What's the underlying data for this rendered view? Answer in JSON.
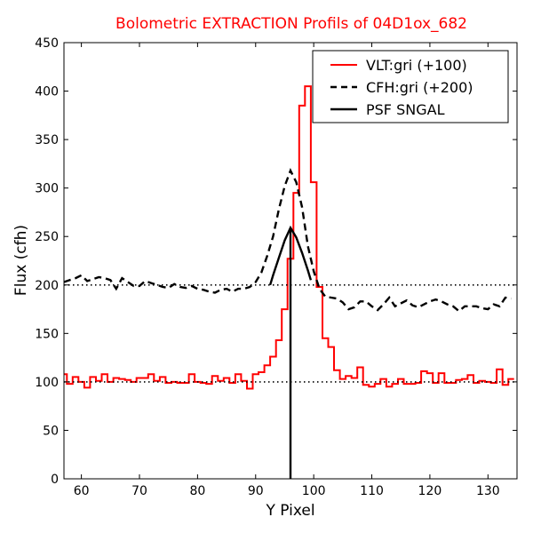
{
  "chart_data": {
    "type": "line",
    "title": "Bolometric EXTRACTION Profils of 04D1ox_682",
    "title_color": "#ff0000",
    "xlabel": "Y Pixel",
    "ylabel": "Flux (cfh)",
    "xlim": [
      57,
      135
    ],
    "ylim": [
      0,
      450
    ],
    "xticks": [
      60,
      70,
      80,
      90,
      100,
      110,
      120,
      130
    ],
    "yticks": [
      0,
      50,
      100,
      150,
      200,
      250,
      300,
      350,
      400,
      450
    ],
    "grid": false,
    "legend": "top-right",
    "reference_lines": [
      100,
      200
    ],
    "series": [
      {
        "name": "VLT:gri (+100)",
        "style": "steps",
        "color": "#ff0000",
        "x": [
          57,
          58,
          59,
          60,
          61,
          62,
          63,
          64,
          65,
          66,
          67,
          68,
          69,
          70,
          71,
          72,
          73,
          74,
          75,
          76,
          77,
          78,
          79,
          80,
          81,
          82,
          83,
          84,
          85,
          86,
          87,
          88,
          89,
          90,
          91,
          92,
          93,
          94,
          95,
          96,
          97,
          98,
          99,
          100,
          101,
          102,
          103,
          104,
          105,
          106,
          107,
          108,
          109,
          110,
          111,
          112,
          113,
          114,
          115,
          116,
          117,
          118,
          119,
          120,
          121,
          122,
          123,
          124,
          125,
          126,
          127,
          128,
          129,
          130,
          131,
          132,
          133,
          134
        ],
        "values": [
          108,
          98,
          105,
          100,
          94,
          105,
          101,
          108,
          100,
          104,
          103,
          102,
          100,
          104,
          104,
          108,
          101,
          105,
          99,
          100,
          99,
          99,
          108,
          100,
          99,
          98,
          106,
          101,
          104,
          99,
          108,
          101,
          93,
          108,
          110,
          117,
          126,
          143,
          175,
          227,
          295,
          385,
          405,
          306,
          198,
          145,
          136,
          112,
          103,
          106,
          104,
          115,
          97,
          95,
          98,
          103,
          95,
          98,
          103,
          98,
          98,
          99,
          111,
          109,
          99,
          109,
          99,
          99,
          102,
          103,
          107,
          99,
          101,
          100,
          99,
          113,
          97,
          103
        ]
      },
      {
        "name": "CFH:gri (+200)",
        "style": "dashed",
        "color": "#000000",
        "x": [
          57,
          58,
          59,
          60,
          61,
          62,
          63,
          64,
          65,
          66,
          67,
          68,
          69,
          70,
          71,
          72,
          73,
          74,
          75,
          76,
          77,
          78,
          79,
          80,
          81,
          82,
          83,
          84,
          85,
          86,
          87,
          88,
          89,
          90,
          91,
          92,
          93,
          94,
          95,
          96,
          97,
          98,
          99,
          100,
          101,
          102,
          103,
          104,
          105,
          106,
          107,
          108,
          109,
          110,
          111,
          112,
          113,
          114,
          115,
          116,
          117,
          118,
          119,
          120,
          121,
          122,
          123,
          124,
          125,
          126,
          127,
          128,
          129,
          130,
          131,
          132,
          133,
          134
        ],
        "values": [
          203,
          205,
          207,
          210,
          204,
          206,
          208,
          207,
          205,
          196,
          207,
          203,
          199,
          199,
          204,
          202,
          200,
          198,
          197,
          201,
          198,
          197,
          199,
          196,
          195,
          193,
          192,
          195,
          196,
          193,
          196,
          196,
          198,
          203,
          213,
          230,
          250,
          278,
          302,
          318,
          306,
          280,
          240,
          214,
          196,
          188,
          187,
          186,
          182,
          175,
          177,
          183,
          183,
          178,
          174,
          180,
          187,
          178,
          181,
          184,
          179,
          177,
          180,
          183,
          185,
          183,
          180,
          178,
          173,
          178,
          178,
          178,
          176,
          175,
          180,
          178,
          187,
          186
        ]
      },
      {
        "name": "PSF SNGAL",
        "style": "solid",
        "color": "#000000",
        "x": [
          92.5,
          93,
          94,
          95,
          96,
          97,
          98,
          99,
          99.5
        ],
        "values": [
          200,
          210,
          228,
          246,
          259,
          249,
          233,
          215,
          205
        ],
        "peak_x": 96
      }
    ]
  }
}
